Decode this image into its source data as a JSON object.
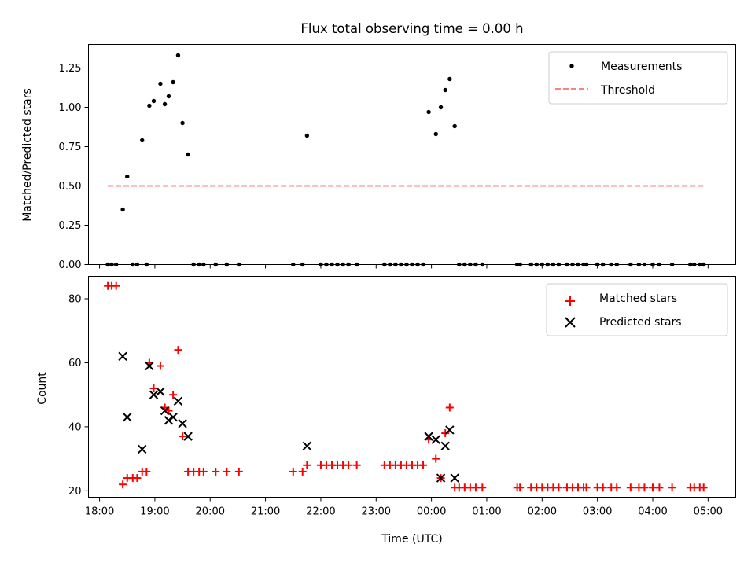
{
  "chart_data": [
    {
      "type": "scatter",
      "title": "Flux total observing time = 0.00 h",
      "xlabel": "",
      "ylabel": "Matched/Predicted stars",
      "xlim": [
        17.8,
        29.5
      ],
      "ylim": [
        0,
        1.4
      ],
      "x_unit": "hours UTC (values beyond 24 are after midnight)",
      "x_ticks": [
        18,
        19,
        20,
        21,
        22,
        23,
        24,
        25,
        26,
        27,
        28,
        29
      ],
      "y_ticks": [
        0.0,
        0.25,
        0.5,
        0.75,
        1.0,
        1.25
      ],
      "y_tick_labels": [
        "0.00",
        "0.25",
        "0.50",
        "0.75",
        "1.00",
        "1.25"
      ],
      "legend": {
        "placement": "top-right",
        "entries": [
          "Measurements",
          "Threshold"
        ]
      },
      "series": [
        {
          "name": "Measurements",
          "marker": "dot",
          "color": "#000000",
          "points": [
            [
              18.15,
              0
            ],
            [
              18.22,
              0
            ],
            [
              18.3,
              0
            ],
            [
              18.42,
              0.35
            ],
            [
              18.5,
              0.56
            ],
            [
              18.6,
              0
            ],
            [
              18.68,
              0
            ],
            [
              18.77,
              0.79
            ],
            [
              18.85,
              0
            ],
            [
              18.9,
              1.01
            ],
            [
              18.98,
              1.04
            ],
            [
              19.1,
              1.15
            ],
            [
              19.18,
              1.02
            ],
            [
              19.25,
              1.07
            ],
            [
              19.33,
              1.16
            ],
            [
              19.42,
              1.33
            ],
            [
              19.5,
              0.9
            ],
            [
              19.6,
              0.7
            ],
            [
              19.7,
              0
            ],
            [
              19.8,
              0
            ],
            [
              19.88,
              0
            ],
            [
              20.1,
              0
            ],
            [
              20.3,
              0
            ],
            [
              20.52,
              0
            ],
            [
              21.5,
              0
            ],
            [
              21.67,
              0
            ],
            [
              21.75,
              0.82
            ],
            [
              22.0,
              0
            ],
            [
              22.1,
              0
            ],
            [
              22.2,
              0
            ],
            [
              22.3,
              0
            ],
            [
              22.4,
              0
            ],
            [
              22.5,
              0
            ],
            [
              22.65,
              0
            ],
            [
              23.15,
              0
            ],
            [
              23.25,
              0
            ],
            [
              23.35,
              0
            ],
            [
              23.45,
              0
            ],
            [
              23.55,
              0
            ],
            [
              23.65,
              0
            ],
            [
              23.75,
              0
            ],
            [
              23.85,
              0
            ],
            [
              23.95,
              0.97
            ],
            [
              24.08,
              0.83
            ],
            [
              24.17,
              1.0
            ],
            [
              24.25,
              1.11
            ],
            [
              24.33,
              1.18
            ],
            [
              24.42,
              0.88
            ],
            [
              24.5,
              0
            ],
            [
              24.6,
              0
            ],
            [
              24.7,
              0
            ],
            [
              24.8,
              0
            ],
            [
              24.92,
              0
            ],
            [
              25.55,
              0
            ],
            [
              25.6,
              0
            ],
            [
              25.8,
              0
            ],
            [
              25.9,
              0
            ],
            [
              26.0,
              0
            ],
            [
              26.1,
              0
            ],
            [
              26.2,
              0
            ],
            [
              26.3,
              0
            ],
            [
              26.45,
              0
            ],
            [
              26.55,
              0
            ],
            [
              26.65,
              0
            ],
            [
              26.75,
              0
            ],
            [
              26.8,
              0
            ],
            [
              27.0,
              0
            ],
            [
              27.1,
              0
            ],
            [
              27.25,
              0
            ],
            [
              27.35,
              0
            ],
            [
              27.6,
              0
            ],
            [
              27.75,
              0
            ],
            [
              27.85,
              0
            ],
            [
              28.0,
              0
            ],
            [
              28.12,
              0
            ],
            [
              28.35,
              0
            ],
            [
              28.68,
              0
            ],
            [
              28.75,
              0
            ],
            [
              28.85,
              0
            ],
            [
              28.92,
              0
            ]
          ]
        },
        {
          "name": "Threshold",
          "line_style": "dashed",
          "color": "#ff7f7f",
          "x": [
            18.15,
            28.92
          ],
          "y": [
            0.5,
            0.5
          ]
        }
      ]
    },
    {
      "type": "scatter",
      "title": "",
      "xlabel": "Time (UTC)",
      "ylabel": "Count",
      "xlim": [
        17.8,
        29.5
      ],
      "ylim": [
        18,
        87
      ],
      "x_ticks": [
        18,
        19,
        20,
        21,
        22,
        23,
        24,
        25,
        26,
        27,
        28,
        29
      ],
      "x_tick_labels": [
        "18:00",
        "19:00",
        "20:00",
        "21:00",
        "22:00",
        "23:00",
        "00:00",
        "01:00",
        "02:00",
        "03:00",
        "04:00",
        "05:00"
      ],
      "y_ticks": [
        20,
        40,
        60,
        80
      ],
      "y_tick_labels": [
        "20",
        "40",
        "60",
        "80"
      ],
      "legend": {
        "placement": "top-right",
        "entries": [
          "Matched stars",
          "Predicted stars"
        ]
      },
      "series": [
        {
          "name": "Matched stars",
          "marker": "plus",
          "color": "#ff0000",
          "points": [
            [
              18.15,
              84
            ],
            [
              18.22,
              84
            ],
            [
              18.3,
              84
            ],
            [
              18.42,
              22
            ],
            [
              18.5,
              24
            ],
            [
              18.6,
              24
            ],
            [
              18.68,
              24
            ],
            [
              18.77,
              26
            ],
            [
              18.85,
              26
            ],
            [
              18.9,
              60
            ],
            [
              18.98,
              52
            ],
            [
              19.1,
              59
            ],
            [
              19.18,
              46
            ],
            [
              19.25,
              45
            ],
            [
              19.33,
              50
            ],
            [
              19.42,
              64
            ],
            [
              19.5,
              37
            ],
            [
              19.6,
              26
            ],
            [
              19.7,
              26
            ],
            [
              19.8,
              26
            ],
            [
              19.88,
              26
            ],
            [
              20.1,
              26
            ],
            [
              20.3,
              26
            ],
            [
              20.52,
              26
            ],
            [
              21.5,
              26
            ],
            [
              21.67,
              26
            ],
            [
              21.75,
              28
            ],
            [
              22.0,
              28
            ],
            [
              22.1,
              28
            ],
            [
              22.2,
              28
            ],
            [
              22.3,
              28
            ],
            [
              22.4,
              28
            ],
            [
              22.5,
              28
            ],
            [
              22.65,
              28
            ],
            [
              23.15,
              28
            ],
            [
              23.25,
              28
            ],
            [
              23.35,
              28
            ],
            [
              23.45,
              28
            ],
            [
              23.55,
              28
            ],
            [
              23.65,
              28
            ],
            [
              23.75,
              28
            ],
            [
              23.85,
              28
            ],
            [
              23.95,
              36
            ],
            [
              24.08,
              30
            ],
            [
              24.17,
              24
            ],
            [
              24.25,
              38
            ],
            [
              24.33,
              46
            ],
            [
              24.42,
              21
            ],
            [
              24.5,
              21
            ],
            [
              24.6,
              21
            ],
            [
              24.7,
              21
            ],
            [
              24.8,
              21
            ],
            [
              24.92,
              21
            ],
            [
              25.55,
              21
            ],
            [
              25.6,
              21
            ],
            [
              25.8,
              21
            ],
            [
              25.9,
              21
            ],
            [
              26.0,
              21
            ],
            [
              26.1,
              21
            ],
            [
              26.2,
              21
            ],
            [
              26.3,
              21
            ],
            [
              26.45,
              21
            ],
            [
              26.55,
              21
            ],
            [
              26.65,
              21
            ],
            [
              26.75,
              21
            ],
            [
              26.8,
              21
            ],
            [
              27.0,
              21
            ],
            [
              27.1,
              21
            ],
            [
              27.25,
              21
            ],
            [
              27.35,
              21
            ],
            [
              27.6,
              21
            ],
            [
              27.75,
              21
            ],
            [
              27.85,
              21
            ],
            [
              28.0,
              21
            ],
            [
              28.12,
              21
            ],
            [
              28.35,
              21
            ],
            [
              28.68,
              21
            ],
            [
              28.75,
              21
            ],
            [
              28.85,
              21
            ],
            [
              28.92,
              21
            ]
          ]
        },
        {
          "name": "Predicted stars",
          "marker": "x",
          "color": "#000000",
          "points": [
            [
              18.42,
              62
            ],
            [
              18.5,
              43
            ],
            [
              18.77,
              33
            ],
            [
              18.9,
              59
            ],
            [
              18.98,
              50
            ],
            [
              19.1,
              51
            ],
            [
              19.18,
              45
            ],
            [
              19.25,
              42
            ],
            [
              19.33,
              43
            ],
            [
              19.42,
              48
            ],
            [
              19.5,
              41
            ],
            [
              19.6,
              37
            ],
            [
              21.75,
              34
            ],
            [
              23.95,
              37
            ],
            [
              24.08,
              36
            ],
            [
              24.17,
              24
            ],
            [
              24.25,
              34
            ],
            [
              24.33,
              39
            ],
            [
              24.42,
              24
            ]
          ]
        }
      ]
    }
  ]
}
